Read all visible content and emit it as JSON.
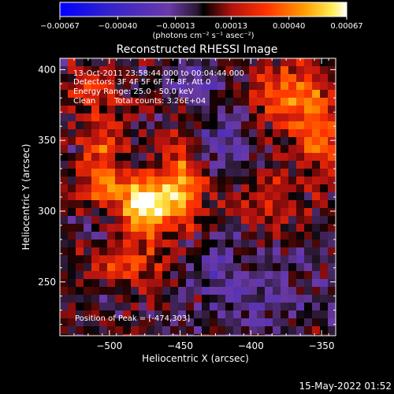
{
  "chart_data": {
    "type": "heatmap",
    "title": "Reconstructed RHESSI Image",
    "xlabel": "Heliocentric X (arcsec)",
    "ylabel": "Heliocentric Y (arcsec)",
    "xlim": [
      -535,
      -340
    ],
    "ylim": [
      212,
      408
    ],
    "xticks": [
      -500,
      -450,
      -400,
      -350
    ],
    "yticks": [
      250,
      300,
      350,
      400
    ],
    "xtick_labels": [
      "−500",
      "−450",
      "−400",
      "−350"
    ],
    "ytick_labels": [
      "250",
      "300",
      "350",
      "400"
    ],
    "colorbar": {
      "range": [
        -0.00067,
        0.00067
      ],
      "ticks": [
        -0.00067,
        -0.0004,
        -0.00013,
        0.00013,
        0.0004,
        0.00067
      ],
      "tick_labels": [
        "−0.00067",
        "−0.00040",
        "−0.00013",
        "0.00013",
        "0.00040",
        "0.00067"
      ],
      "unit_label": "(photons cm⁻² s⁻¹ asec⁻²)"
    },
    "peak": [
      -474,
      303
    ],
    "sources": [
      {
        "x": -474,
        "y": 303,
        "amp": 0.00067,
        "sx": 12,
        "sy": 14
      },
      {
        "x": -448,
        "y": 318,
        "amp": 0.00042,
        "sx": 12,
        "sy": 22
      },
      {
        "x": -500,
        "y": 318,
        "amp": 0.0003,
        "sx": 14,
        "sy": 10
      },
      {
        "x": -505,
        "y": 345,
        "amp": 0.00028,
        "sx": 10,
        "sy": 18
      },
      {
        "x": -515,
        "y": 385,
        "amp": 0.00026,
        "sx": 14,
        "sy": 10
      },
      {
        "x": -478,
        "y": 262,
        "amp": 0.00024,
        "sx": 14,
        "sy": 10
      },
      {
        "x": -500,
        "y": 265,
        "amp": 0.00022,
        "sx": 12,
        "sy": 8
      },
      {
        "x": -372,
        "y": 382,
        "amp": 0.00034,
        "sx": 20,
        "sy": 18
      },
      {
        "x": -352,
        "y": 350,
        "amp": 0.00028,
        "sx": 12,
        "sy": 20
      },
      {
        "x": -388,
        "y": 310,
        "amp": 0.0002,
        "sx": 12,
        "sy": 14
      },
      {
        "x": -420,
        "y": 352,
        "amp": -0.0002,
        "sx": 16,
        "sy": 18
      },
      {
        "x": -440,
        "y": 395,
        "amp": -0.00018,
        "sx": 14,
        "sy": 10
      },
      {
        "x": -392,
        "y": 240,
        "amp": -0.00016,
        "sx": 28,
        "sy": 20
      },
      {
        "x": -430,
        "y": 262,
        "amp": -0.00014,
        "sx": 14,
        "sy": 12
      }
    ]
  },
  "annotations": {
    "time_range": "13-Oct-2011 23:58:44.000 to 00:04:44.000",
    "detectors": "Detectors: 3F 4F 5F 6F 7F 8F, Att 0",
    "energy": "Energy Range: 25.0 - 50.0 keV",
    "algorithm": "Clean",
    "counts": "Total counts: 3.26E+04",
    "peak_label": "Position of Peak = [-474,303]"
  },
  "timestamp": "15-May-2022 01:52"
}
